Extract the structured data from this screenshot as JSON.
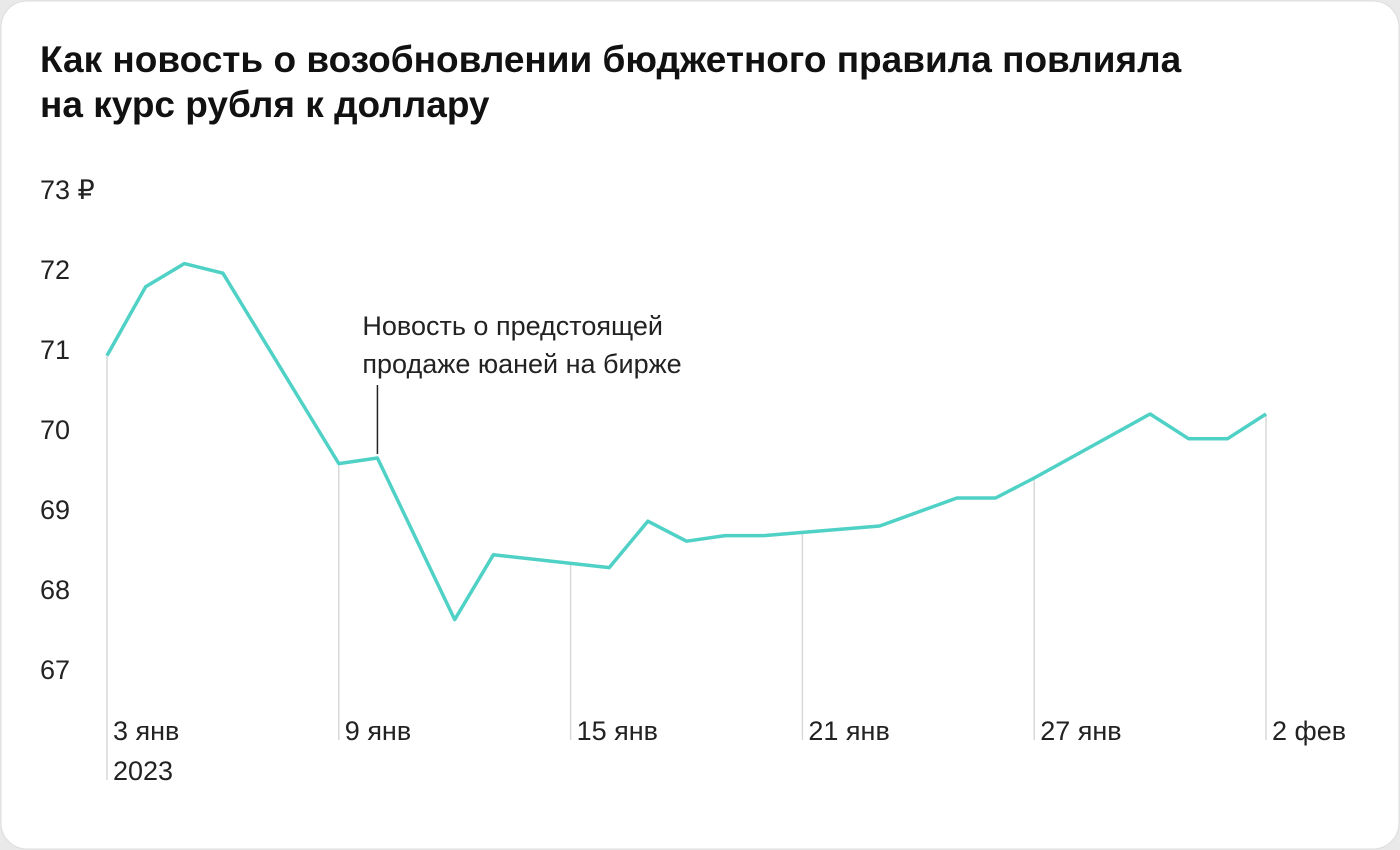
{
  "chart_data": {
    "type": "line",
    "title_lines": [
      "Как новость о возобновлении бюджетного правила повлияла",
      "на курс рубля к доллару"
    ],
    "x": [
      "2023-01-03",
      "2023-01-04",
      "2023-01-05",
      "2023-01-06",
      "2023-01-09",
      "2023-01-10",
      "2023-01-12",
      "2023-01-13",
      "2023-01-16",
      "2023-01-17",
      "2023-01-18",
      "2023-01-19",
      "2023-01-20",
      "2023-01-23",
      "2023-01-25",
      "2023-01-26",
      "2023-01-27",
      "2023-01-30",
      "2023-01-31",
      "2023-02-01",
      "2023-02-02"
    ],
    "series": [
      {
        "color": "#4fd1c5",
        "values": [
          70.93,
          71.79,
          72.08,
          71.96,
          69.58,
          69.65,
          67.63,
          68.44,
          68.28,
          68.86,
          68.61,
          68.68,
          68.68,
          68.8,
          69.15,
          69.15,
          69.4,
          70.2,
          69.89,
          69.89,
          70.2
        ]
      }
    ],
    "xlim": [
      "2023-01-03",
      "2023-02-02"
    ],
    "xticks": [
      {
        "value": "2023-01-03",
        "label": "3 янв"
      },
      {
        "value": "2023-01-09",
        "label": "9 янв"
      },
      {
        "value": "2023-01-15",
        "label": "15 янв"
      },
      {
        "value": "2023-01-21",
        "label": "21 янв"
      },
      {
        "value": "2023-01-27",
        "label": "27 янв"
      },
      {
        "value": "2023-02-02",
        "label": "2 фев"
      }
    ],
    "x_year_label": "2023",
    "ylim": [
      67,
      73
    ],
    "yticks": [
      67,
      68,
      69,
      70,
      71,
      72,
      {
        "value": 73,
        "label": "73 ₽"
      }
    ],
    "annotation": {
      "x": "2023-01-10",
      "lines": [
        "Новость о предстоящей",
        "продаже юаней на бирже"
      ]
    }
  }
}
